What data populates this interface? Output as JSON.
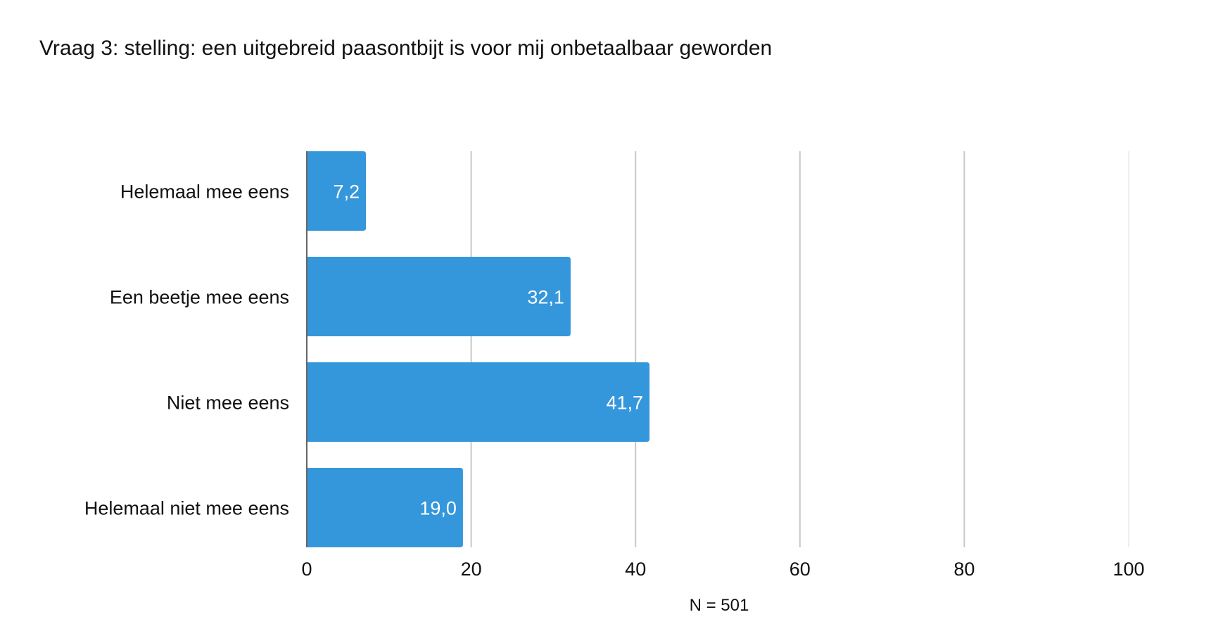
{
  "chart_data": {
    "type": "bar",
    "orientation": "horizontal",
    "title": "Vraag 3: stelling: een uitgebreid paasontbijt is voor mij onbetaalbaar geworden",
    "categories": [
      "Helemaal mee eens",
      "Een beetje mee eens",
      "Niet mee eens",
      "Helemaal niet mee eens"
    ],
    "values": [
      7.2,
      32.1,
      41.7,
      19.0
    ],
    "value_labels": [
      "7,2",
      "32,1",
      "41,7",
      "19,0"
    ],
    "xlim": [
      0,
      100
    ],
    "xticks": [
      0,
      20,
      40,
      60,
      80,
      100
    ],
    "xlabel": "",
    "ylabel": "",
    "note": "N = 501",
    "grid": true,
    "bar_color": "#3597db"
  }
}
